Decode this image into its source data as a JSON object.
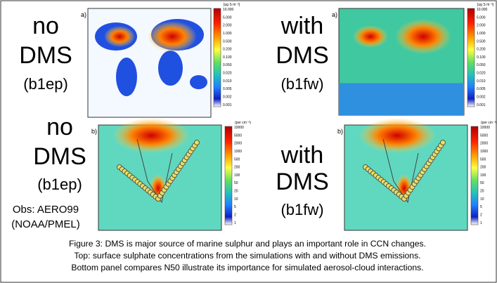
{
  "panels": [
    {
      "label_lines": [
        "no",
        "DMS",
        "(b1ep)"
      ],
      "panel_letter": "a)",
      "colorbar_unit": "[ug S m⁻³]",
      "colorbar_ticks": [
        "10.000",
        "5.000",
        "2.000",
        "1.000",
        "0.500",
        "0.200",
        "0.100",
        "0.050",
        "0.020",
        "0.010",
        "0.005",
        "0.002",
        "0.001"
      ]
    },
    {
      "label_lines": [
        "with",
        "DMS",
        "(b1fw)"
      ],
      "panel_letter": "a)",
      "colorbar_unit": "[ug S m⁻³]",
      "colorbar_ticks": [
        "10.000",
        "5.000",
        "2.000",
        "1.000",
        "0.500",
        "0.200",
        "0.100",
        "0.050",
        "0.020",
        "0.010",
        "0.005",
        "0.002",
        "0.001"
      ]
    },
    {
      "label_lines": [
        "no",
        "DMS",
        "(b1ep)"
      ],
      "panel_letter": "b)",
      "colorbar_unit": "(per cm⁻³)",
      "colorbar_ticks": [
        "10000",
        "5000",
        "2000",
        "1000",
        "500",
        "200",
        "100",
        "50",
        "20",
        "10",
        "5",
        "2",
        "1"
      ]
    },
    {
      "label_lines": [
        "with",
        "DMS",
        "(b1fw)"
      ],
      "panel_letter": "b)",
      "colorbar_unit": "(per cm⁻³)",
      "colorbar_ticks": [
        "10000",
        "5000",
        "2000",
        "1000",
        "500",
        "200",
        "100",
        "50",
        "20",
        "10",
        "5",
        "2",
        "1"
      ]
    }
  ],
  "obs_note": [
    "Obs: AERO99",
    "(NOAA/PMEL)"
  ],
  "caption": [
    "Figure 3: DMS is major source of marine sulphur and plays an important role in CCN changes.",
    "Top: surface sulphate concentrations from the simulations with and without DMS emissions.",
    "Bottom panel compares N50 illustrate its importance for simulated aerosol-cloud interactions."
  ]
}
